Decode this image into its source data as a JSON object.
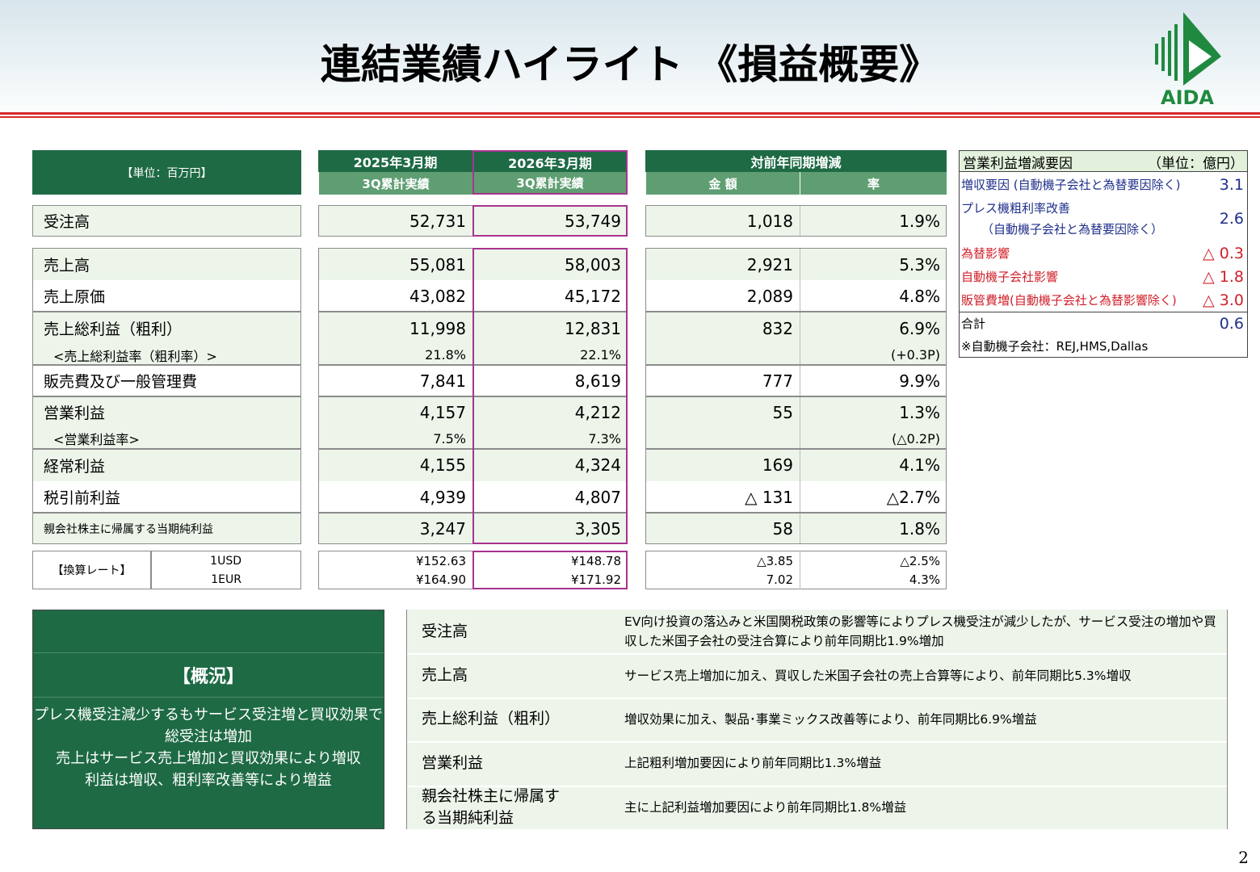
{
  "header": {
    "title": "連結業績ハイライト 《損益概要》",
    "logo": "AIDA"
  },
  "main_table": {
    "unit": "【単位：百万円】",
    "period_headers": [
      "2025年3月期",
      "2026年3月期",
      "対前年同期増減"
    ],
    "sub_headers": [
      "3Q累計実績",
      "3Q累計実績",
      "金 額",
      "率"
    ],
    "rows": [
      {
        "label": "受注高",
        "prev": "52,731",
        "curr": "53,749",
        "amount": "1,018",
        "rate": "1.9%"
      },
      {
        "label": "売上高",
        "prev": "55,081",
        "curr": "58,003",
        "amount": "2,921",
        "rate": "5.3%"
      },
      {
        "label": "売上原価",
        "prev": "43,082",
        "curr": "45,172",
        "amount": "2,089",
        "rate": "4.8%"
      },
      {
        "label": "売上総利益（粗利）",
        "prev": "11,998",
        "curr": "12,831",
        "amount": "832",
        "rate": "6.9%"
      },
      {
        "label": "<売上総利益率（粗利率）>",
        "prev": "21.8%",
        "curr": "22.1%",
        "rate": "(+0.3P)"
      },
      {
        "label": "販売費及び一般管理費",
        "prev": "7,841",
        "curr": "8,619",
        "amount": "777",
        "rate": "9.9%"
      },
      {
        "label": "営業利益",
        "prev": "4,157",
        "curr": "4,212",
        "amount": "55",
        "rate": "1.3%"
      },
      {
        "label": "<営業利益率>",
        "prev": "7.5%",
        "curr": "7.3%",
        "rate": "(△0.2P)"
      },
      {
        "label": "経常利益",
        "prev": "4,155",
        "curr": "4,324",
        "amount": "169",
        "rate": "4.1%"
      },
      {
        "label": "税引前利益",
        "prev": "4,939",
        "curr": "4,807",
        "amount": "△ 131",
        "rate": "△2.7%"
      },
      {
        "label": "親会社株主に帰属する当期純利益",
        "prev": "3,247",
        "curr": "3,305",
        "amount": "58",
        "rate": "1.8%"
      }
    ],
    "rate_label": "【換算レート】",
    "rates": [
      {
        "label": "1USD",
        "prev": "¥152.63",
        "curr": "¥148.78",
        "amount": "△3.85",
        "rate": "△2.5%"
      },
      {
        "label": "1EUR",
        "prev": "¥164.90",
        "curr": "¥171.92",
        "amount": "7.02",
        "rate": "4.3%"
      }
    ]
  },
  "factors": {
    "title": "営業利益増減要因",
    "unit": "（単位：億円）",
    "rows": [
      {
        "label": "増収要因 (自動機子会社と為替要因除く)",
        "value": "3.1"
      },
      {
        "label": "プレス機粗利率改善",
        "sublabel": "（自動機子会社と為替要因除く）",
        "value": "2.6"
      },
      {
        "label": "為替影響",
        "value": "△ 0.3"
      },
      {
        "label": "自動機子会社影響",
        "value": "△ 1.8"
      },
      {
        "label": "販管費増(自動機子会社と為替影響除く)",
        "value": "△ 3.0"
      },
      {
        "label": "合計",
        "value": "0.6"
      }
    ],
    "note": "※自動機子会社：REJ,HMS,Dallas"
  },
  "summary": {
    "heading": "【概況】",
    "lines": [
      "プレス機受注減少するもサービス受注増と買収効果で",
      "総受注は増加",
      "売上はサービス売上増加と買収効果により増収",
      "利益は増収、粗利率改善等により増益"
    ]
  },
  "comments": {
    "rows": [
      {
        "item": "受注高",
        "text": "EV向け投資の落込みと米国関税政策の影響等によりプレス機受注が減少したが、サービス受注の増加や買収した米国子会社の受注合算により前年同期比1.9%増加"
      },
      {
        "item": "売上高",
        "text": "サービス売上増加に加え、買収した米国子会社の売上合算等により、前年同期比5.3%増収"
      },
      {
        "item": "売上総利益（粗利）",
        "text": "増収効果に加え、製品･事業ミックス改善等により、前年同期比6.9%増益"
      },
      {
        "item": "営業利益",
        "text": "上記粗利増加要因により前年同期比1.3%増益"
      },
      {
        "item": "親会社株主に帰属する当期純利益",
        "text": "主に上記利益増加要因により前年同期比1.8%増益"
      }
    ]
  },
  "page_number": "2"
}
